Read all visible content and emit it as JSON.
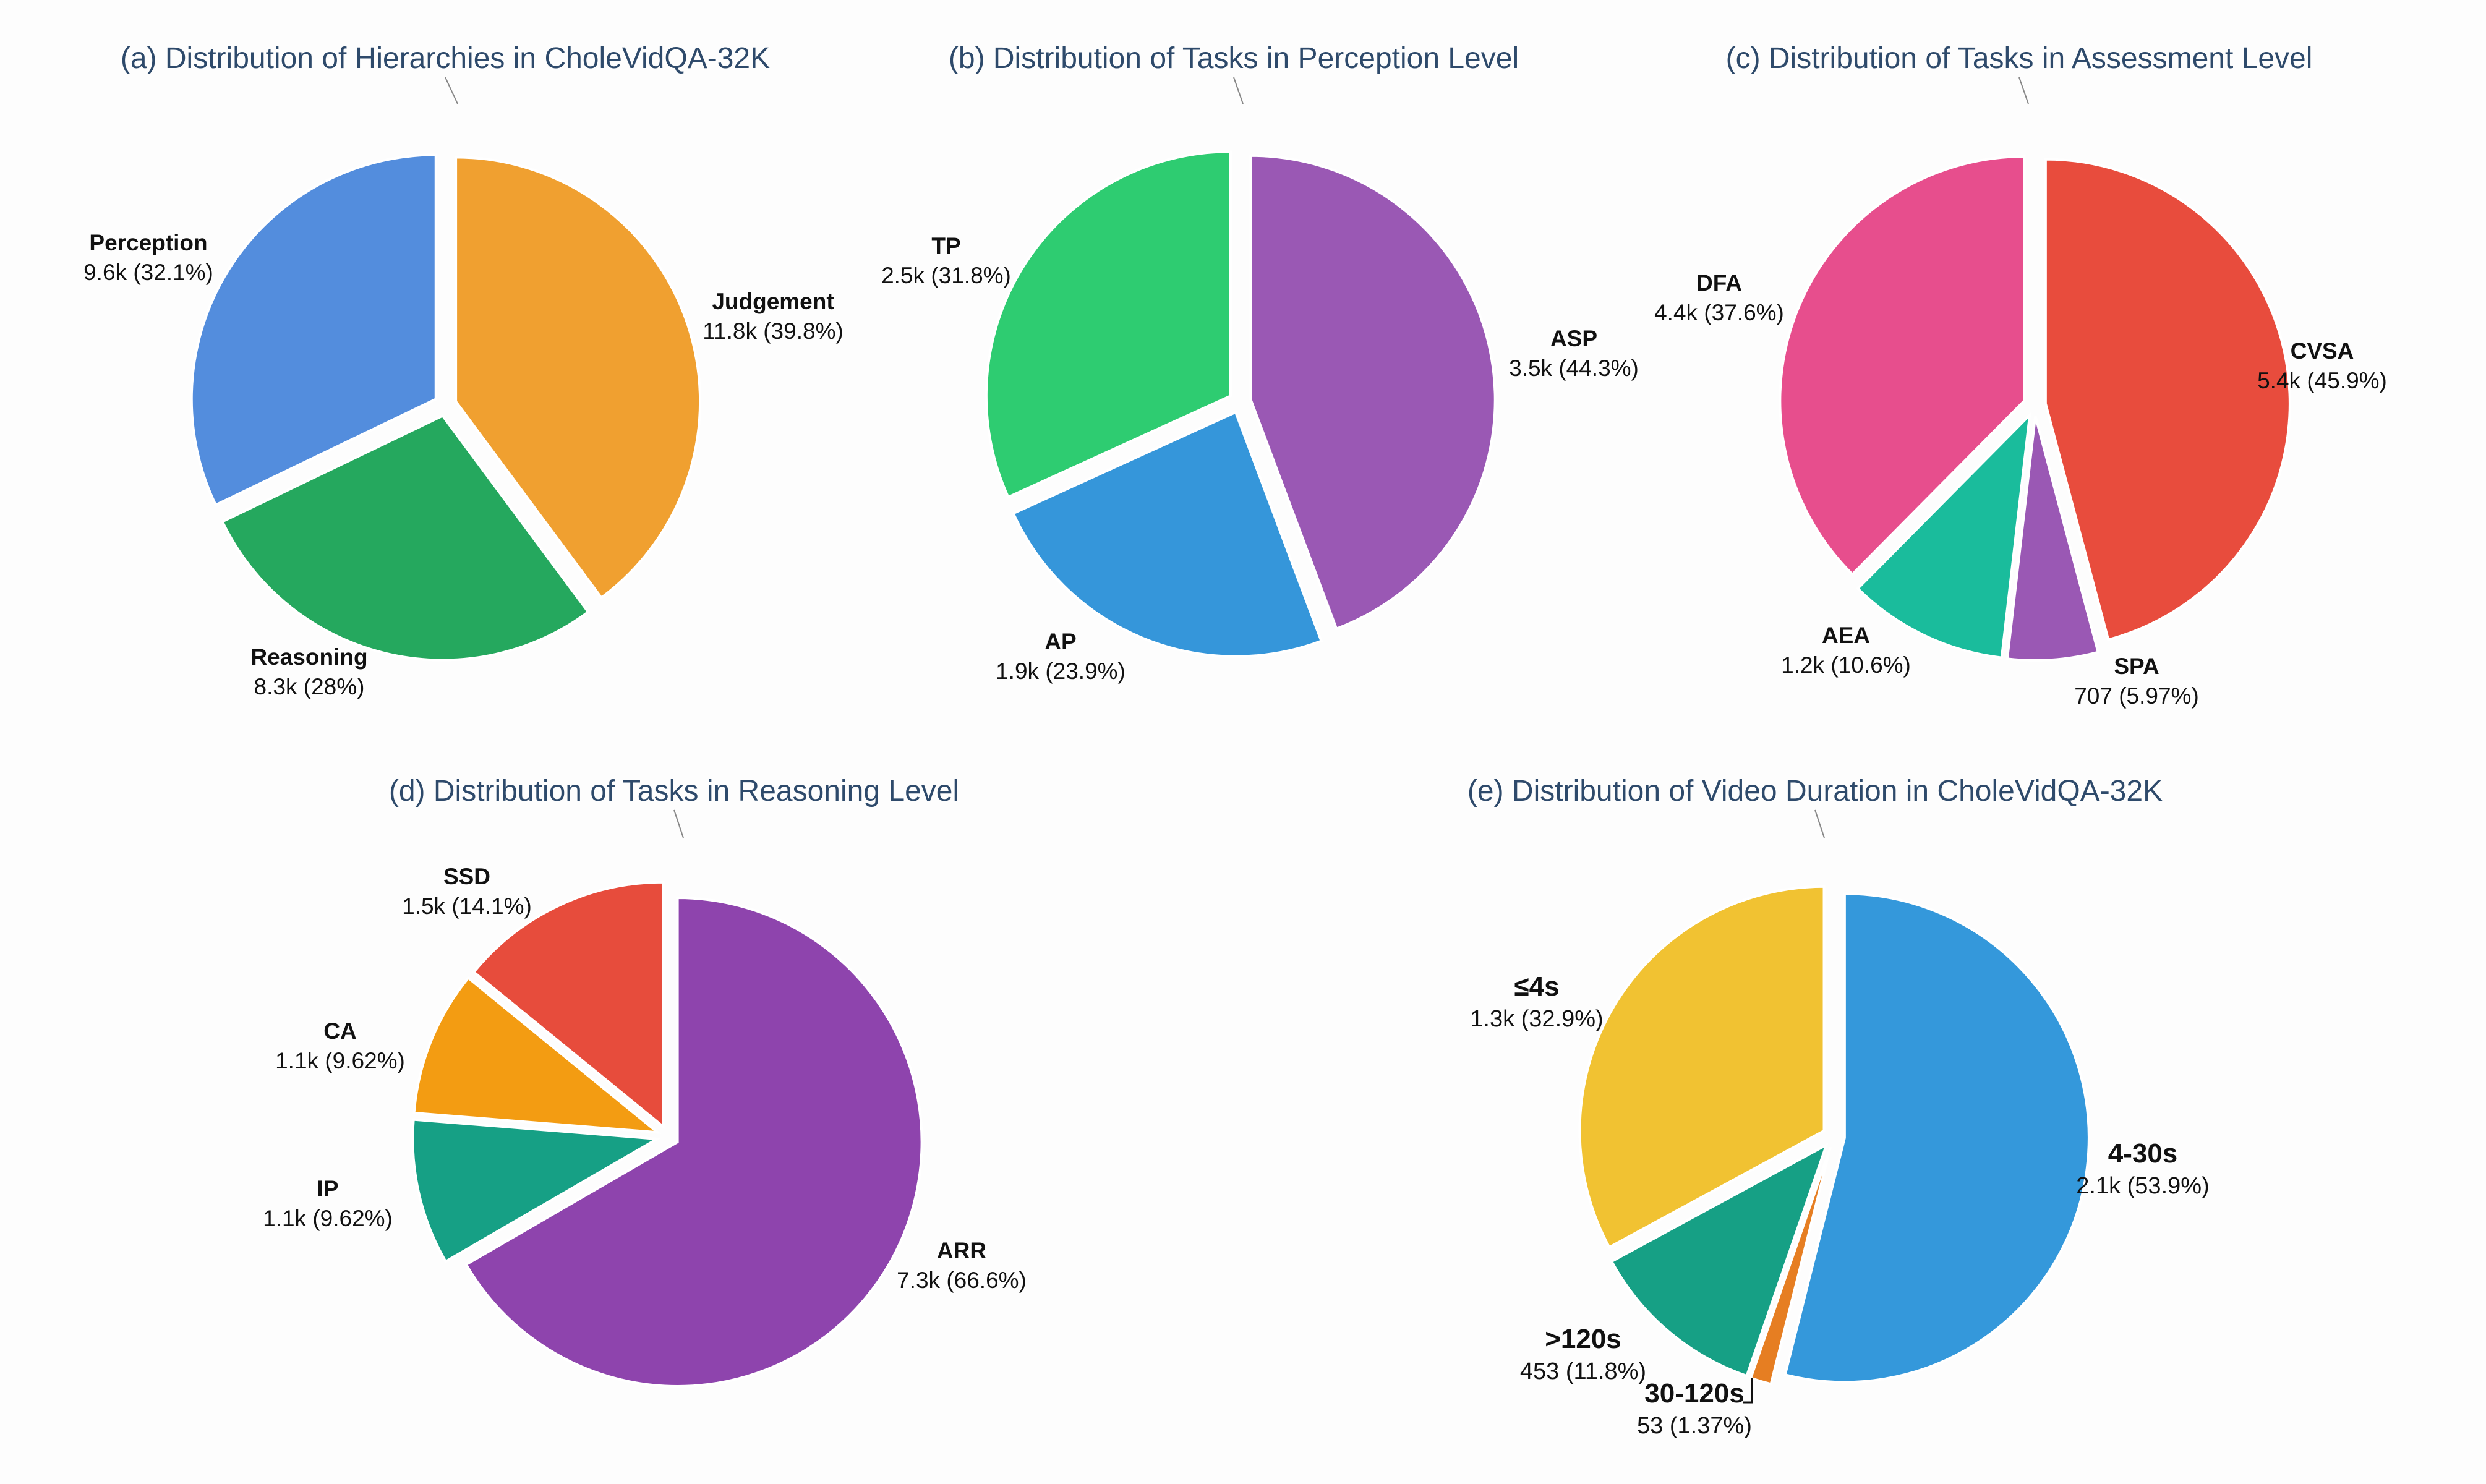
{
  "chart_data": [
    {
      "type": "pie",
      "title": "(a) Distribution of Hierarchies in CholeVidQA-32K",
      "slices": [
        {
          "label": "Judgement",
          "value_text": "11.8k (39.8%)",
          "value": 39.8,
          "color": "#f0a030"
        },
        {
          "label": "Reasoning",
          "value_text": "8.3k (28%)",
          "value": 28.0,
          "color": "#25a85e"
        },
        {
          "label": "Perception",
          "value_text": "9.6k (32.1%)",
          "value": 32.1,
          "color": "#538ddd"
        }
      ]
    },
    {
      "type": "pie",
      "title": "(b) Distribution of Tasks in Perception Level",
      "slices": [
        {
          "label": "ASP",
          "value_text": "3.5k (44.3%)",
          "value": 44.3,
          "color": "#9a58b4"
        },
        {
          "label": "AP",
          "value_text": "1.9k (23.9%)",
          "value": 23.9,
          "color": "#3596da"
        },
        {
          "label": "TP",
          "value_text": "2.5k (31.8%)",
          "value": 31.8,
          "color": "#2ecc71"
        }
      ]
    },
    {
      "type": "pie",
      "title": "(c) Distribution of Tasks in Assessment Level",
      "slices": [
        {
          "label": "CVSA",
          "value_text": "5.4k (45.9%)",
          "value": 45.9,
          "color": "#e84c3d"
        },
        {
          "label": "SPA",
          "value_text": "707 (5.97%)",
          "value": 5.97,
          "color": "#9a58b4"
        },
        {
          "label": "AEA",
          "value_text": "1.2k (10.6%)",
          "value": 10.6,
          "color": "#1abc9c"
        },
        {
          "label": "DFA",
          "value_text": "4.4k (37.6%)",
          "value": 37.6,
          "color": "#e74e8d"
        }
      ]
    },
    {
      "type": "pie",
      "title": "(d) Distribution of Tasks in Reasoning Level",
      "slices": [
        {
          "label": "ARR",
          "value_text": "7.3k (66.6%)",
          "value": 66.6,
          "color": "#8e44ad"
        },
        {
          "label": "IP",
          "value_text": "1.1k (9.62%)",
          "value": 9.62,
          "color": "#16a085"
        },
        {
          "label": "CA",
          "value_text": "1.1k (9.62%)",
          "value": 9.62,
          "color": "#f39c12"
        },
        {
          "label": "SSD",
          "value_text": "1.5k (14.1%)",
          "value": 14.1,
          "color": "#e74c3c"
        }
      ]
    },
    {
      "type": "pie",
      "title": "(e) Distribution of Video Duration in CholeVidQA-32K",
      "slices": [
        {
          "label": "4-30s",
          "value_text": "2.1k (53.9%)",
          "value": 53.9,
          "color": "#3498db"
        },
        {
          "label": "30-120s",
          "value_text": "53 (1.37%)",
          "value": 1.37,
          "color": "#e67e22"
        },
        {
          "label": ">120s",
          "value_text": "453 (11.8%)",
          "value": 11.8,
          "color": "#16a085"
        },
        {
          "label": "≤4s",
          "value_text": "1.3k (32.9%)",
          "value": 32.9,
          "color": "#f1c232"
        }
      ]
    }
  ]
}
